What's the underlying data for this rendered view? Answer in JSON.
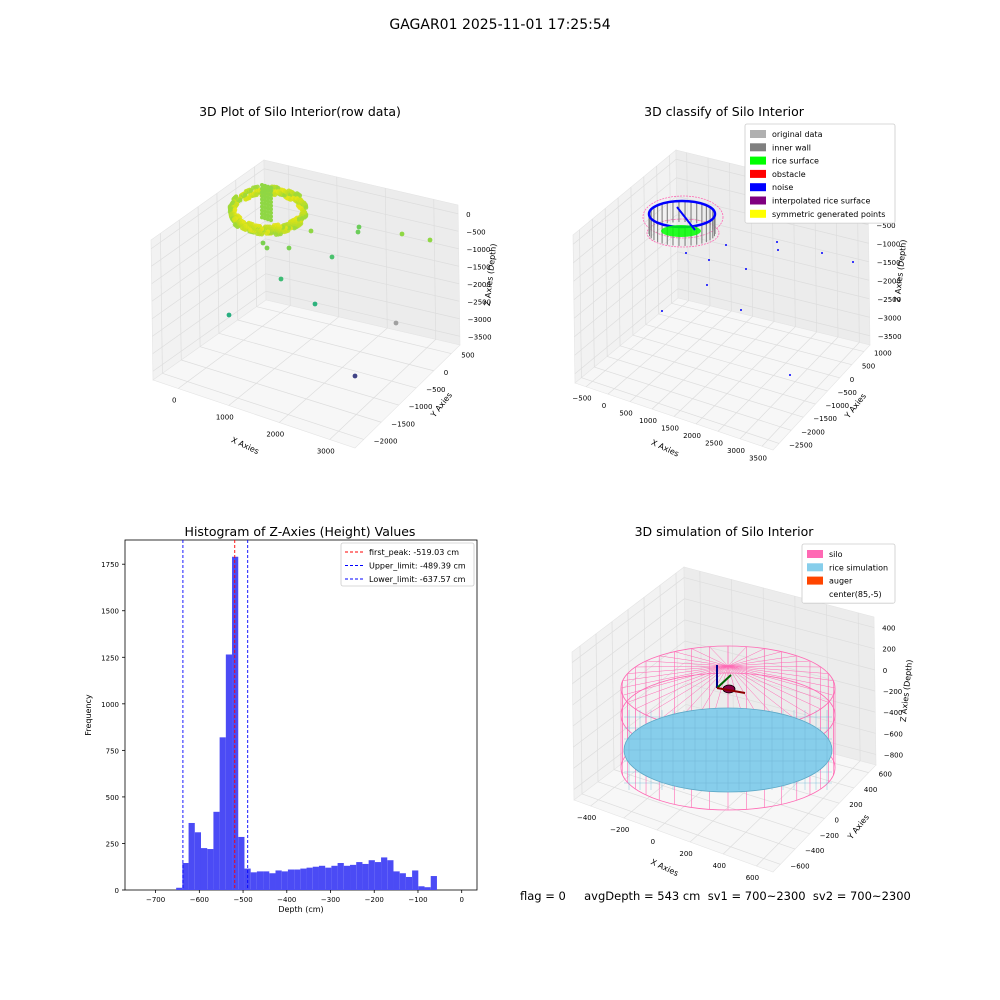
{
  "figure": {
    "title": "GAGAR01 2025-11-01 17:25:54",
    "footer": "flag = 0     avgDepth = 543 cm  sv1 = 700~2300  sv2 = 700~2300"
  },
  "colors": {
    "histogram_bar": "#4b4bf5",
    "first_peak_line": "#ff0000",
    "limit_lines": "#0000ff",
    "grid": "#dddddd",
    "pane": "#f2f2f2"
  },
  "chart_data": [
    {
      "id": "raw",
      "type": "scatter",
      "title": "3D Plot of Silo Interior(row data)",
      "xlabel": "X Axies",
      "ylabel": "Y Axies",
      "zlabel": "Z Axies (Depth)",
      "xticks": [
        "0",
        "1000",
        "2000",
        "3000"
      ],
      "yticks": [
        "500",
        "0",
        "−500",
        "−1000",
        "−1500",
        "−2000"
      ],
      "zticks": [
        "0",
        "−500",
        "−1000",
        "−1500",
        "−2000",
        "−2500",
        "−3000",
        "−3500"
      ],
      "xlim": [
        -500,
        3500
      ],
      "ylim": [
        -2000,
        600
      ],
      "zlim": [
        -3500,
        0
      ],
      "grid": true,
      "colormap": "viridis (by depth)"
    },
    {
      "id": "classify",
      "type": "scatter",
      "title": "3D classify of Silo Interior",
      "xlabel": "X Axies",
      "ylabel": "Y Axies",
      "zlabel": "Z Axies (Depth)",
      "xticks": [
        "−500",
        "0",
        "500",
        "1000",
        "1500",
        "2000",
        "2500",
        "3000",
        "3500"
      ],
      "yticks": [
        "1000",
        "500",
        "0",
        "−500",
        "−1000",
        "−1500",
        "−2000",
        "−2500"
      ],
      "zticks": [
        "0",
        "−500",
        "−1000",
        "−1500",
        "−2000",
        "−2500",
        "−3000",
        "−3500"
      ],
      "zticks_top": "100",
      "xlim": [
        -500,
        3500
      ],
      "ylim": [
        -2500,
        1000
      ],
      "zlim": [
        -3500,
        100
      ],
      "grid": true,
      "legend_position": "top-right",
      "legend": [
        {
          "label": "original data",
          "color": "#b0b0b0"
        },
        {
          "label": "inner wall",
          "color": "#808080"
        },
        {
          "label": "rice surface",
          "color": "#00ff00"
        },
        {
          "label": "obstacle",
          "color": "#ff0000"
        },
        {
          "label": "noise",
          "color": "#0000ff"
        },
        {
          "label": "interpolated rice surface",
          "color": "#800080"
        },
        {
          "label": "symmetric generated points",
          "color": "#ffff00"
        }
      ]
    },
    {
      "id": "hist",
      "type": "bar",
      "title": "Histogram of Z-Axies (Height) Values",
      "xlabel": "Depth (cm)",
      "ylabel": "Frequency",
      "xlim": [
        -770,
        35
      ],
      "ylim": [
        0,
        1880
      ],
      "xticks": [
        -700,
        -600,
        -500,
        -400,
        -300,
        -200,
        -100,
        0
      ],
      "yticks": [
        0,
        250,
        500,
        750,
        1000,
        1250,
        1500,
        1750
      ],
      "xtick_labels": [
        "−700",
        "−600",
        "−500",
        "−400",
        "−300",
        "−200",
        "−100",
        "0"
      ],
      "ytick_labels": [
        "0",
        "250",
        "500",
        "750",
        "1000",
        "1250",
        "1500",
        "1750"
      ],
      "bin_start": -653,
      "bin_width": 14.2,
      "values": [
        12,
        145,
        360,
        310,
        225,
        220,
        420,
        820,
        1265,
        1790,
        285,
        115,
        95,
        100,
        100,
        90,
        105,
        100,
        110,
        110,
        115,
        120,
        125,
        130,
        120,
        130,
        145,
        130,
        135,
        150,
        140,
        160,
        150,
        175,
        160,
        100,
        90,
        70,
        105,
        20,
        15,
        75
      ],
      "vlines": [
        {
          "label": "first_peak: -519.03 cm",
          "value": -519.03,
          "color": "#ff0000"
        },
        {
          "label": "Upper_limit: -489.39 cm",
          "value": -489.39,
          "color": "#0000ff"
        },
        {
          "label": "Lower_limit: -637.57 cm",
          "value": -637.57,
          "color": "#0000ff"
        }
      ],
      "legend_position": "top-right"
    },
    {
      "id": "sim",
      "type": "scatter",
      "title": "3D simulation of Silo Interior",
      "xlabel": "X Axies",
      "ylabel": "Y Axies",
      "zlabel": "Z Axies (Depth)",
      "xticks": [
        "−400",
        "−200",
        "0",
        "200",
        "400",
        "600"
      ],
      "yticks": [
        "600",
        "400",
        "200",
        "0",
        "−200",
        "−400",
        "−600"
      ],
      "zticks": [
        "400",
        "200",
        "0",
        "−200",
        "−400",
        "−600",
        "−800"
      ],
      "xlim": [
        -500,
        700
      ],
      "ylim": [
        -700,
        700
      ],
      "zlim": [
        -900,
        450
      ],
      "grid": true,
      "legend_position": "top-right",
      "legend": [
        {
          "label": "silo",
          "color": "#ff69b4"
        },
        {
          "label": "rice simulation",
          "color": "#87ceeb"
        },
        {
          "label": "auger",
          "color": "#ff4500"
        },
        {
          "label": "center(85,-5)",
          "color": ""
        }
      ]
    }
  ]
}
